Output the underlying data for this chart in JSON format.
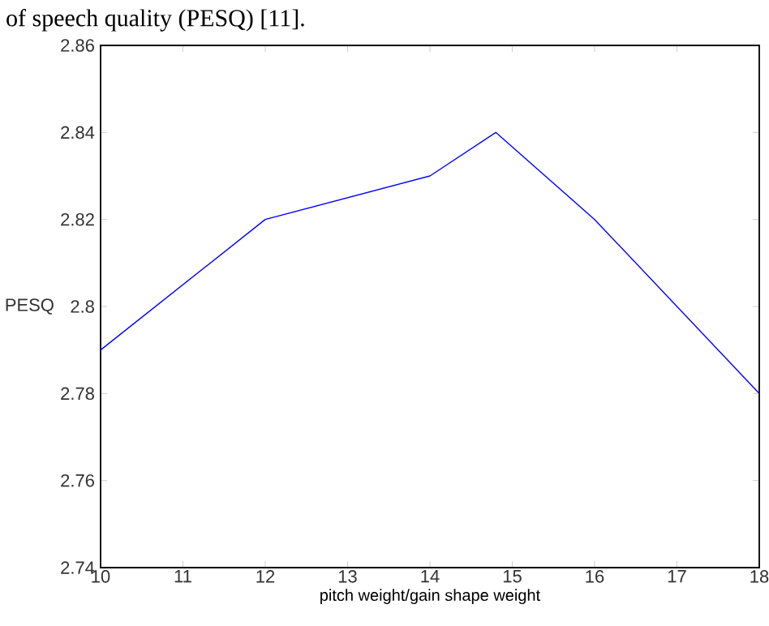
{
  "chart_data": {
    "type": "line",
    "xlabel": "pitch weight/gain shape weight",
    "ylabel": "PESQ",
    "annotations": [
      "of speech quality (PESQ) [11]."
    ],
    "x": [
      10,
      12,
      14,
      14.8,
      16,
      18
    ],
    "series": [
      {
        "color": "#0000ff",
        "values": [
          2.79,
          2.82,
          2.83,
          2.84,
          2.82,
          2.78
        ]
      }
    ],
    "xlim": [
      10,
      18
    ],
    "ylim": [
      2.74,
      2.86
    ],
    "xticks": [
      10,
      11,
      12,
      13,
      14,
      15,
      16,
      17,
      18
    ],
    "yticks": [
      2.74,
      2.76,
      2.78,
      2.8,
      2.82,
      2.84,
      2.86
    ],
    "grid": false,
    "marker": "none",
    "line_style": "solid"
  }
}
